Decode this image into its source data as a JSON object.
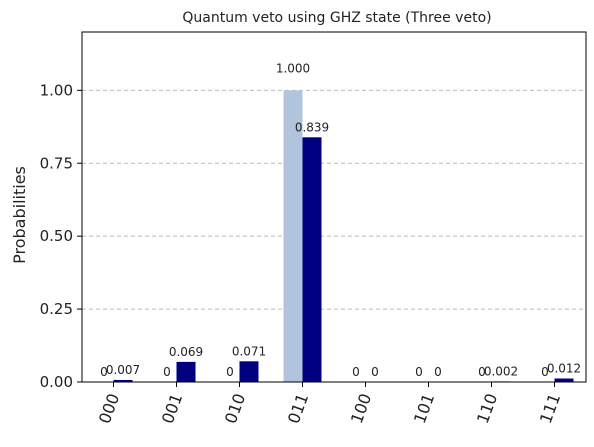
{
  "chart_data": {
    "type": "bar",
    "title": "Quantum veto using GHZ state (Three veto)",
    "xlabel": "",
    "ylabel": "Probabilities",
    "categories": [
      "000",
      "001",
      "010",
      "011",
      "100",
      "101",
      "110",
      "111"
    ],
    "series": [
      {
        "color": "#b0c4de",
        "values": [
          0,
          0,
          0,
          1.0,
          0,
          0,
          0,
          0
        ],
        "labels": [
          "0",
          "0",
          "0",
          "1.000",
          "0",
          "0",
          "0",
          "0"
        ]
      },
      {
        "color": "#000080",
        "values": [
          0.007,
          0.069,
          0.071,
          0.839,
          0,
          0,
          0.002,
          0.012
        ],
        "labels": [
          "0.007",
          "0.069",
          "0.071",
          "0.839",
          "0",
          "0",
          "0.002",
          "0.012"
        ]
      }
    ],
    "ylim": [
      0,
      1.2
    ],
    "yticks": [
      "0.00",
      "0.25",
      "0.50",
      "0.75",
      "1.00"
    ],
    "ytick_values": [
      0,
      0.25,
      0.5,
      0.75,
      1.0
    ],
    "grid": "y-dashed",
    "legend": "none"
  }
}
